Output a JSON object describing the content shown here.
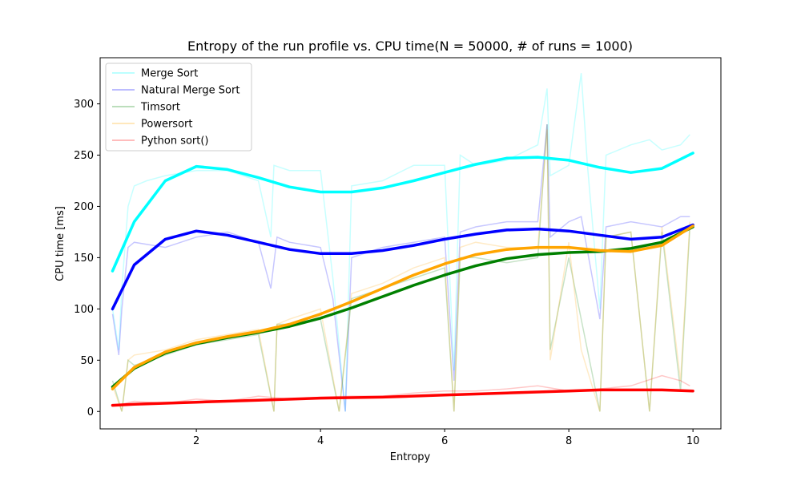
{
  "chart_data": {
    "type": "line",
    "title": "Entropy of the run profile vs. CPU time(N = 50000, # of runs = 1000)",
    "xlabel": "Entropy",
    "ylabel": "CPU time [ms]",
    "xlim": [
      0.45,
      10.45
    ],
    "ylim": [
      -17,
      345
    ],
    "xticks": [
      2,
      4,
      6,
      8,
      10
    ],
    "yticks": [
      0,
      50,
      100,
      150,
      200,
      250,
      300
    ],
    "legend_position": "top-left",
    "grid": false,
    "series": [
      {
        "name": "Merge Sort",
        "color": "#00ffff",
        "raw_points": [
          [
            0.65,
            100
          ],
          [
            0.75,
            60
          ],
          [
            0.8,
            120
          ],
          [
            0.9,
            200
          ],
          [
            1.0,
            220
          ],
          [
            1.2,
            225
          ],
          [
            1.5,
            230
          ],
          [
            2.0,
            235
          ],
          [
            2.5,
            235
          ],
          [
            3.0,
            225
          ],
          [
            3.2,
            170
          ],
          [
            3.25,
            240
          ],
          [
            3.5,
            235
          ],
          [
            4.0,
            235
          ],
          [
            4.2,
            130
          ],
          [
            4.4,
            0
          ],
          [
            4.5,
            220
          ],
          [
            5.0,
            225
          ],
          [
            5.5,
            240
          ],
          [
            6.0,
            240
          ],
          [
            6.15,
            40
          ],
          [
            6.25,
            250
          ],
          [
            6.5,
            240
          ],
          [
            7.0,
            245
          ],
          [
            7.5,
            260
          ],
          [
            7.65,
            315
          ],
          [
            7.7,
            230
          ],
          [
            8.0,
            240
          ],
          [
            8.2,
            330
          ],
          [
            8.3,
            240
          ],
          [
            8.5,
            100
          ],
          [
            8.6,
            250
          ],
          [
            9.0,
            260
          ],
          [
            9.3,
            265
          ],
          [
            9.5,
            255
          ],
          [
            9.8,
            260
          ],
          [
            9.95,
            270
          ]
        ],
        "trend_points": [
          [
            0.65,
            137
          ],
          [
            1.0,
            185
          ],
          [
            1.5,
            225
          ],
          [
            2.0,
            239
          ],
          [
            2.5,
            236
          ],
          [
            3.0,
            228
          ],
          [
            3.5,
            219
          ],
          [
            4.0,
            214
          ],
          [
            4.5,
            214
          ],
          [
            5.0,
            218
          ],
          [
            5.5,
            225
          ],
          [
            6.0,
            233
          ],
          [
            6.5,
            241
          ],
          [
            7.0,
            247
          ],
          [
            7.5,
            248
          ],
          [
            8.0,
            245
          ],
          [
            8.5,
            238
          ],
          [
            9.0,
            233
          ],
          [
            9.5,
            237
          ],
          [
            10.0,
            252
          ]
        ]
      },
      {
        "name": "Natural Merge Sort",
        "color": "#0000ff",
        "raw_points": [
          [
            0.65,
            95
          ],
          [
            0.75,
            55
          ],
          [
            0.8,
            100
          ],
          [
            0.9,
            160
          ],
          [
            1.0,
            165
          ],
          [
            1.5,
            160
          ],
          [
            2.0,
            170
          ],
          [
            2.5,
            175
          ],
          [
            3.0,
            165
          ],
          [
            3.2,
            120
          ],
          [
            3.3,
            170
          ],
          [
            3.5,
            165
          ],
          [
            4.0,
            160
          ],
          [
            4.2,
            110
          ],
          [
            4.4,
            0
          ],
          [
            4.5,
            150
          ],
          [
            5.0,
            160
          ],
          [
            5.5,
            165
          ],
          [
            6.0,
            170
          ],
          [
            6.15,
            30
          ],
          [
            6.25,
            175
          ],
          [
            6.5,
            180
          ],
          [
            7.0,
            185
          ],
          [
            7.5,
            185
          ],
          [
            7.65,
            280
          ],
          [
            7.7,
            170
          ],
          [
            8.0,
            185
          ],
          [
            8.2,
            190
          ],
          [
            8.5,
            90
          ],
          [
            8.6,
            180
          ],
          [
            9.0,
            185
          ],
          [
            9.5,
            180
          ],
          [
            9.8,
            190
          ],
          [
            9.95,
            190
          ]
        ],
        "trend_points": [
          [
            0.65,
            100
          ],
          [
            1.0,
            143
          ],
          [
            1.5,
            168
          ],
          [
            2.0,
            176
          ],
          [
            2.5,
            172
          ],
          [
            3.0,
            165
          ],
          [
            3.5,
            158
          ],
          [
            4.0,
            154
          ],
          [
            4.5,
            154
          ],
          [
            5.0,
            157
          ],
          [
            5.5,
            162
          ],
          [
            6.0,
            168
          ],
          [
            6.5,
            173
          ],
          [
            7.0,
            177
          ],
          [
            7.5,
            178
          ],
          [
            8.0,
            176
          ],
          [
            8.5,
            172
          ],
          [
            9.0,
            168
          ],
          [
            9.5,
            170
          ],
          [
            10.0,
            182
          ]
        ]
      },
      {
        "name": "Timsort",
        "color": "#008000",
        "raw_points": [
          [
            0.65,
            30
          ],
          [
            0.8,
            0
          ],
          [
            0.9,
            50
          ],
          [
            1.0,
            45
          ],
          [
            1.5,
            55
          ],
          [
            2.0,
            65
          ],
          [
            2.5,
            70
          ],
          [
            3.0,
            75
          ],
          [
            3.25,
            0
          ],
          [
            3.3,
            85
          ],
          [
            3.5,
            85
          ],
          [
            4.0,
            90
          ],
          [
            4.3,
            0
          ],
          [
            4.5,
            110
          ],
          [
            5.0,
            120
          ],
          [
            5.5,
            130
          ],
          [
            6.0,
            140
          ],
          [
            6.15,
            0
          ],
          [
            6.25,
            150
          ],
          [
            6.5,
            150
          ],
          [
            7.0,
            145
          ],
          [
            7.5,
            150
          ],
          [
            7.65,
            280
          ],
          [
            7.7,
            60
          ],
          [
            8.0,
            150
          ],
          [
            8.2,
            90
          ],
          [
            8.5,
            0
          ],
          [
            8.6,
            170
          ],
          [
            9.0,
            175
          ],
          [
            9.3,
            0
          ],
          [
            9.5,
            175
          ],
          [
            9.8,
            20
          ],
          [
            9.95,
            180
          ]
        ],
        "trend_points": [
          [
            0.65,
            24
          ],
          [
            1.0,
            42
          ],
          [
            1.5,
            57
          ],
          [
            2.0,
            66
          ],
          [
            2.5,
            72
          ],
          [
            3.0,
            77
          ],
          [
            3.5,
            83
          ],
          [
            4.0,
            91
          ],
          [
            4.5,
            101
          ],
          [
            5.0,
            112
          ],
          [
            5.5,
            123
          ],
          [
            6.0,
            133
          ],
          [
            6.5,
            142
          ],
          [
            7.0,
            149
          ],
          [
            7.5,
            153
          ],
          [
            8.0,
            155
          ],
          [
            8.5,
            156
          ],
          [
            9.0,
            159
          ],
          [
            9.5,
            165
          ],
          [
            10.0,
            180
          ]
        ]
      },
      {
        "name": "Powersort",
        "color": "#ffa500",
        "raw_points": [
          [
            0.65,
            25
          ],
          [
            0.8,
            0
          ],
          [
            0.9,
            50
          ],
          [
            1.0,
            55
          ],
          [
            1.5,
            60
          ],
          [
            2.0,
            70
          ],
          [
            2.5,
            75
          ],
          [
            3.0,
            80
          ],
          [
            3.25,
            0
          ],
          [
            3.3,
            85
          ],
          [
            3.5,
            90
          ],
          [
            4.0,
            100
          ],
          [
            4.3,
            0
          ],
          [
            4.5,
            115
          ],
          [
            5.0,
            125
          ],
          [
            5.5,
            140
          ],
          [
            6.0,
            150
          ],
          [
            6.15,
            0
          ],
          [
            6.25,
            160
          ],
          [
            6.5,
            165
          ],
          [
            7.0,
            160
          ],
          [
            7.5,
            160
          ],
          [
            7.65,
            275
          ],
          [
            7.7,
            50
          ],
          [
            8.0,
            165
          ],
          [
            8.2,
            60
          ],
          [
            8.5,
            0
          ],
          [
            8.6,
            170
          ],
          [
            9.0,
            175
          ],
          [
            9.3,
            0
          ],
          [
            9.5,
            180
          ],
          [
            9.8,
            30
          ],
          [
            9.95,
            185
          ]
        ],
        "trend_points": [
          [
            0.65,
            22
          ],
          [
            1.0,
            43
          ],
          [
            1.5,
            58
          ],
          [
            2.0,
            67
          ],
          [
            2.5,
            73
          ],
          [
            3.0,
            78
          ],
          [
            3.5,
            85
          ],
          [
            4.0,
            95
          ],
          [
            4.5,
            107
          ],
          [
            5.0,
            120
          ],
          [
            5.5,
            133
          ],
          [
            6.0,
            144
          ],
          [
            6.5,
            153
          ],
          [
            7.0,
            158
          ],
          [
            7.5,
            160
          ],
          [
            8.0,
            160
          ],
          [
            8.5,
            157
          ],
          [
            9.0,
            156
          ],
          [
            9.5,
            162
          ],
          [
            10.0,
            181
          ]
        ]
      },
      {
        "name": "Python sort()",
        "color": "#ff0000",
        "raw_points": [
          [
            0.65,
            5
          ],
          [
            1.0,
            10
          ],
          [
            1.5,
            8
          ],
          [
            2.0,
            12
          ],
          [
            2.5,
            10
          ],
          [
            3.0,
            15
          ],
          [
            3.5,
            12
          ],
          [
            4.0,
            14
          ],
          [
            4.5,
            15
          ],
          [
            5.0,
            15
          ],
          [
            5.5,
            18
          ],
          [
            6.0,
            20
          ],
          [
            6.5,
            20
          ],
          [
            7.0,
            22
          ],
          [
            7.5,
            25
          ],
          [
            8.0,
            20
          ],
          [
            8.5,
            22
          ],
          [
            9.0,
            25
          ],
          [
            9.5,
            35
          ],
          [
            9.8,
            30
          ],
          [
            9.95,
            25
          ]
        ],
        "trend_points": [
          [
            0.65,
            6
          ],
          [
            1.0,
            7
          ],
          [
            2.0,
            9
          ],
          [
            3.0,
            11
          ],
          [
            4.0,
            13
          ],
          [
            5.0,
            14
          ],
          [
            6.0,
            16
          ],
          [
            7.0,
            18
          ],
          [
            8.0,
            20
          ],
          [
            8.5,
            21
          ],
          [
            9.0,
            21
          ],
          [
            9.5,
            21
          ],
          [
            10.0,
            20
          ]
        ]
      }
    ]
  }
}
